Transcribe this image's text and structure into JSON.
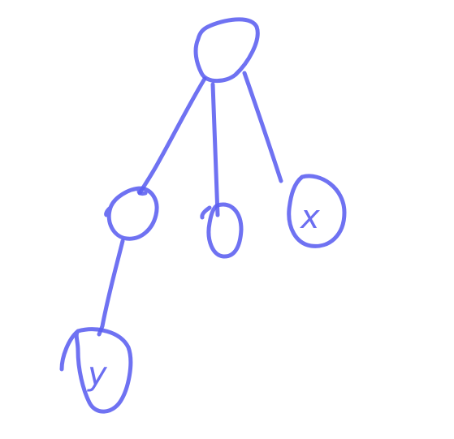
{
  "drawing": {
    "ink_color": "#5b5ff0",
    "background": "#ffffff",
    "nodes": [
      {
        "id": "root",
        "label": ""
      },
      {
        "id": "left-child",
        "label": ""
      },
      {
        "id": "middle-child",
        "label": ""
      },
      {
        "id": "right-child",
        "label": "x"
      },
      {
        "id": "grandchild",
        "label": "y"
      }
    ],
    "edges": [
      {
        "from": "root",
        "to": "left-child"
      },
      {
        "from": "root",
        "to": "middle-child"
      },
      {
        "from": "root",
        "to": "right-child"
      },
      {
        "from": "left-child",
        "to": "grandchild"
      }
    ]
  }
}
